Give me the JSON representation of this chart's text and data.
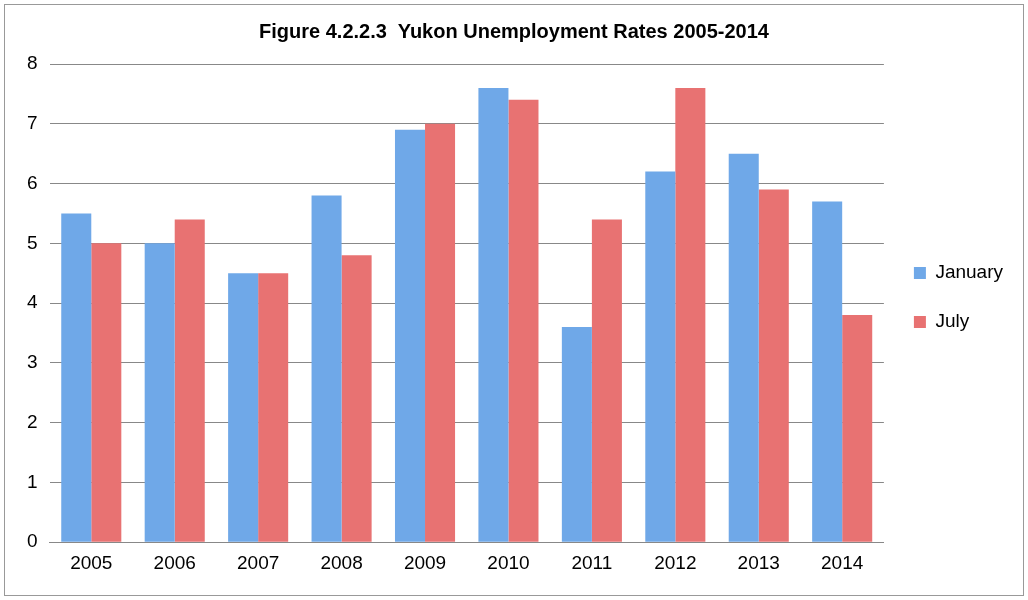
{
  "chart_data": {
    "type": "bar",
    "title": "Figure 4.2.2.3  Yukon Unemployment Rates 2005-2014",
    "categories": [
      "2005",
      "2006",
      "2007",
      "2008",
      "2009",
      "2010",
      "2011",
      "2012",
      "2013",
      "2014"
    ],
    "series": [
      {
        "name": "January",
        "color": "#6fa8e8",
        "values": [
          5.5,
          5.0,
          4.5,
          5.8,
          6.9,
          7.6,
          3.6,
          6.2,
          6.5,
          5.7
        ]
      },
      {
        "name": "July",
        "color": "#e87272",
        "values": [
          5.0,
          5.4,
          4.5,
          4.8,
          7.0,
          7.4,
          5.4,
          7.6,
          5.9,
          3.8
        ]
      }
    ],
    "ylim": [
      0,
      8
    ],
    "yticks": [
      0,
      1,
      2,
      3,
      4,
      5,
      6,
      7,
      8
    ],
    "grid": "y",
    "legend": "right"
  }
}
